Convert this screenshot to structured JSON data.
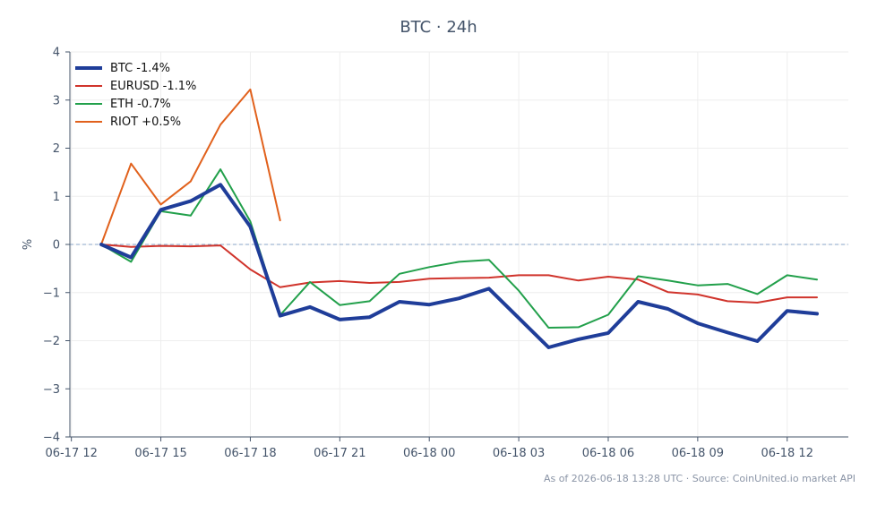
{
  "chart_data": {
    "type": "line",
    "title": "BTC · 24h",
    "ylabel": "%",
    "xlabel": "",
    "ylim": [
      -4,
      4
    ],
    "yticks": [
      4,
      3,
      2,
      1,
      0,
      -1,
      -2,
      -3,
      -4
    ],
    "ytick_labels": [
      "4",
      "3",
      "2",
      "1",
      "0",
      "−1",
      "−2",
      "−3",
      "−4"
    ],
    "xticks": [
      {
        "label": "06-17 12",
        "x": 0
      },
      {
        "label": "06-17 15",
        "x": 3
      },
      {
        "label": "06-17 18",
        "x": 6
      },
      {
        "label": "06-17 21",
        "x": 9
      },
      {
        "label": "06-18 00",
        "x": 12
      },
      {
        "label": "06-18 03",
        "x": 15
      },
      {
        "label": "06-18 06",
        "x": 18
      },
      {
        "label": "06-18 09",
        "x": 21
      },
      {
        "label": "06-18 12",
        "x": 24
      }
    ],
    "xlim": [
      -0.05,
      26.05
    ],
    "x_unit": "hours since 06-17 12",
    "grid": true,
    "reference_line": {
      "y": 0,
      "style": "dashed",
      "color": "#8aa4c8"
    },
    "legend_position": "top-left",
    "series": [
      {
        "name": "BTC -1.4%",
        "color": "#1f3d99",
        "width": 4,
        "x": [
          1,
          2,
          3,
          4,
          5,
          6,
          7,
          8,
          9,
          10,
          11,
          12,
          13,
          14,
          15,
          16,
          17,
          18,
          19,
          20,
          21,
          22,
          23,
          24,
          25
        ],
        "y": [
          0,
          -0.27,
          0.72,
          0.9,
          1.24,
          0.37,
          -1.48,
          -1.3,
          -1.56,
          -1.51,
          -1.19,
          -1.25,
          -1.12,
          -0.92,
          -1.53,
          -2.14,
          -1.97,
          -1.84,
          -1.19,
          -1.34,
          -1.64,
          -1.83,
          -2.01,
          -1.38,
          -1.44
        ]
      },
      {
        "name": "EURUSD -1.1%",
        "color": "#d0342c",
        "width": 2,
        "x": [
          1,
          2,
          3,
          4,
          5,
          6,
          7,
          8,
          9,
          10,
          11,
          12,
          13,
          14,
          15,
          16,
          17,
          18,
          19,
          20,
          21,
          22,
          23,
          24,
          25
        ],
        "y": [
          0,
          -0.05,
          -0.03,
          -0.04,
          -0.02,
          -0.52,
          -0.89,
          -0.79,
          -0.76,
          -0.8,
          -0.78,
          -0.71,
          -0.7,
          -0.69,
          -0.64,
          -0.64,
          -0.75,
          -0.67,
          -0.73,
          -0.99,
          -1.04,
          -1.18,
          -1.21,
          -1.1,
          -1.1
        ]
      },
      {
        "name": "ETH -0.7%",
        "color": "#22a04b",
        "width": 2,
        "x": [
          1,
          2,
          3,
          4,
          5,
          6,
          7,
          8,
          9,
          10,
          11,
          12,
          13,
          14,
          15,
          16,
          17,
          18,
          19,
          20,
          21,
          22,
          23,
          24,
          25
        ],
        "y": [
          0,
          -0.36,
          0.69,
          0.6,
          1.56,
          0.48,
          -1.47,
          -0.78,
          -1.26,
          -1.18,
          -0.61,
          -0.47,
          -0.36,
          -0.32,
          -0.96,
          -1.73,
          -1.72,
          -1.46,
          -0.66,
          -0.75,
          -0.85,
          -0.82,
          -1.03,
          -0.64,
          -0.73
        ]
      },
      {
        "name": "RIOT +0.5%",
        "color": "#e1611c",
        "width": 2,
        "x": [
          1,
          2,
          3,
          4,
          5,
          6,
          7
        ],
        "y": [
          0,
          1.68,
          0.83,
          1.31,
          2.49,
          3.22,
          0.5
        ]
      }
    ],
    "footer": "As of 2026-06-18 13:28 UTC · Source: CoinUnited.io market API"
  }
}
